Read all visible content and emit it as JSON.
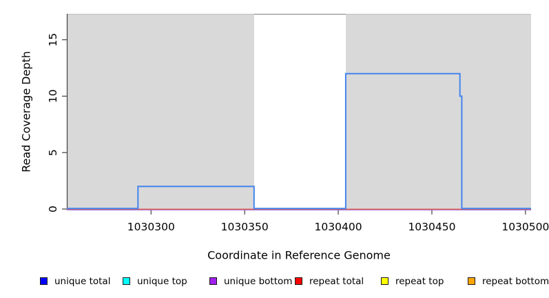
{
  "chart_data": {
    "type": "line",
    "subtype": "step-coverage",
    "title": "",
    "xlabel": "Coordinate in Reference Genome",
    "ylabel": "Read Coverage Depth",
    "xlim": [
      1030255,
      1030503
    ],
    "ylim": [
      0,
      17.3
    ],
    "x_ticks": [
      1030300,
      1030350,
      1030400,
      1030450,
      1030500
    ],
    "y_ticks": [
      0,
      5,
      10,
      15
    ],
    "grid": false,
    "legend_position": "bottom",
    "background_regions": [
      {
        "kind": "unique",
        "x0": 1030255,
        "x1": 1030355,
        "fill": "#d9d9d9",
        "border_top": "#c5c5c5"
      },
      {
        "kind": "repeat",
        "x0": 1030355,
        "x1": 1030404,
        "fill": "#ffffff",
        "border_top": "#8f8f8f"
      },
      {
        "kind": "unique",
        "x0": 1030404,
        "x1": 1030503,
        "fill": "#d9d9d9",
        "border_top": "#c5c5c5"
      }
    ],
    "series": [
      {
        "name": "repeat top",
        "legend_color": "#ffff00",
        "line_color": "#f2e64f",
        "points": [
          [
            1030255,
            0
          ],
          [
            1030503,
            0
          ]
        ]
      },
      {
        "name": "repeat bottom",
        "legend_color": "#ffa500",
        "line_color": "#f0a33c",
        "points": [
          [
            1030255,
            0
          ],
          [
            1030503,
            0
          ]
        ]
      },
      {
        "name": "unique top",
        "legend_color": "#00ffff",
        "line_color": "#4fd6e0",
        "points": [
          [
            1030255,
            0
          ],
          [
            1030503,
            0
          ]
        ]
      },
      {
        "name": "unique bottom",
        "legend_color": "#a020f0",
        "line_color": "#8a5fd6",
        "points": [
          [
            1030255,
            0
          ],
          [
            1030503,
            0
          ]
        ]
      },
      {
        "name": "repeat total",
        "legend_color": "#ff0000",
        "line_color": "#e2605e",
        "points": [
          [
            1030255,
            0
          ],
          [
            1030503,
            0
          ]
        ]
      },
      {
        "name": "unique total",
        "legend_color": "#0000ff",
        "line_color": "#4384ef",
        "points": [
          [
            1030255,
            0
          ],
          [
            1030293,
            0
          ],
          [
            1030293,
            2
          ],
          [
            1030355,
            2
          ],
          [
            1030355,
            0
          ],
          [
            1030404,
            0
          ],
          [
            1030404,
            12
          ],
          [
            1030465,
            12
          ],
          [
            1030465,
            10
          ],
          [
            1030466,
            10
          ],
          [
            1030466,
            0
          ],
          [
            1030503,
            0
          ]
        ]
      }
    ]
  },
  "axes": {
    "tick_color": "#404040",
    "text_color": "#000000",
    "tick_label_font_px": 15.5
  },
  "legend": {
    "items": [
      {
        "label": "unique total",
        "color": "#0000ff"
      },
      {
        "label": "unique top",
        "color": "#00ffff"
      },
      {
        "label": "unique bottom",
        "color": "#a020f0"
      },
      {
        "label": "repeat total",
        "color": "#ff0000"
      },
      {
        "label": "repeat top",
        "color": "#ffff00"
      },
      {
        "label": "repeat bottom",
        "color": "#ffa500"
      }
    ]
  }
}
